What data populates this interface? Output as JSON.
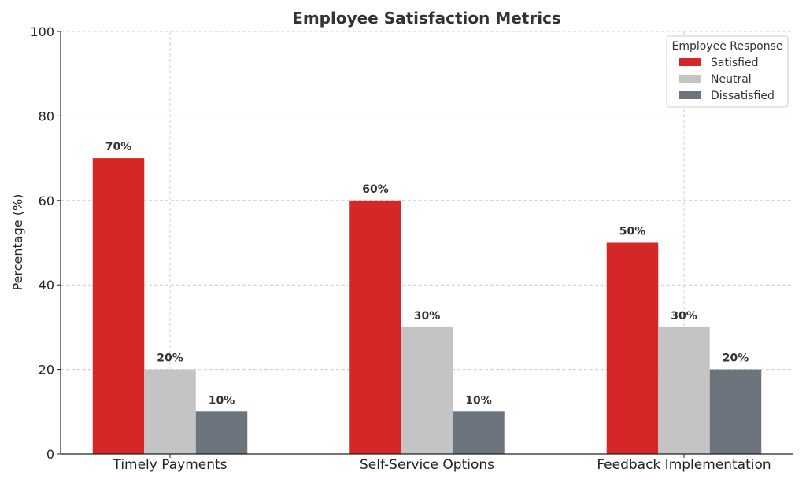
{
  "chart_data": {
    "type": "bar",
    "title": "Employee Satisfaction Metrics",
    "xlabel": "",
    "ylabel": "Percentage (%)",
    "ylim": [
      0,
      100
    ],
    "yticks": [
      0,
      20,
      40,
      60,
      80,
      100
    ],
    "categories": [
      "Timely Payments",
      "Self-Service Options",
      "Feedback Implementation"
    ],
    "series": [
      {
        "name": "Satisfied",
        "values": [
          70,
          60,
          50
        ],
        "color": "#d62728",
        "labels": [
          "70%",
          "60%",
          "50%"
        ]
      },
      {
        "name": "Neutral",
        "values": [
          20,
          30,
          30
        ],
        "color": "#c4c4c4",
        "labels": [
          "20%",
          "30%",
          "30%"
        ]
      },
      {
        "name": "Dissatisfied",
        "values": [
          10,
          10,
          20
        ],
        "color": "#6c757d",
        "labels": [
          "10%",
          "10%",
          "20%"
        ]
      }
    ],
    "legend": {
      "title": "Employee Response",
      "position": "top-right"
    },
    "grid": true
  }
}
